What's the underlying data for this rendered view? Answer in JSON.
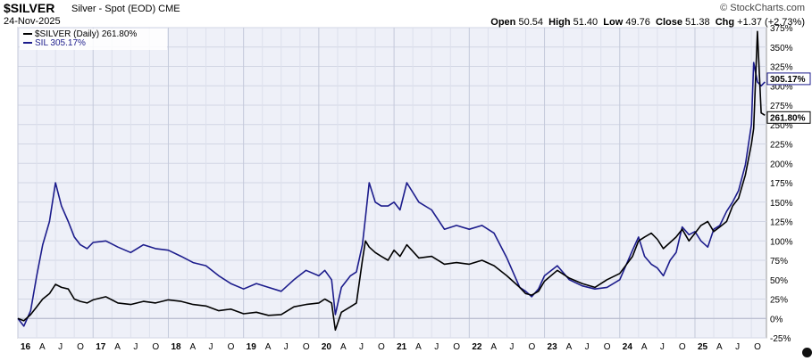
{
  "header": {
    "symbol": "$SILVER",
    "description": "Silver - Spot (EOD) CME",
    "date": "24-Nov-2025",
    "brand": "© StockCharts.com",
    "ohlc": {
      "open_label": "Open",
      "open": "50.54",
      "high_label": "High",
      "high": "51.40",
      "low_label": "Low",
      "low": "49.76",
      "close_label": "Close",
      "close": "51.38",
      "chg_label": "Chg",
      "chg": "+1.37 (+2.73%)"
    }
  },
  "chart_data": {
    "type": "line",
    "x_tick_labels": [
      "16",
      "A",
      "J",
      "O",
      "17",
      "A",
      "J",
      "O",
      "18",
      "A",
      "J",
      "O",
      "19",
      "A",
      "J",
      "O",
      "20",
      "A",
      "J",
      "O",
      "21",
      "A",
      "J",
      "O",
      "22",
      "A",
      "J",
      "O",
      "23",
      "A",
      "J",
      "O",
      "24",
      "A",
      "J",
      "O",
      "25",
      "A",
      "J",
      "O"
    ],
    "y_tick_labels": [
      "375%",
      "350%",
      "325%",
      "300%",
      "275%",
      "250%",
      "225%",
      "200%",
      "175%",
      "150%",
      "125%",
      "100%",
      "75%",
      "50%",
      "25%",
      "0%",
      "-25%"
    ],
    "y_ticks": [
      375,
      350,
      325,
      300,
      275,
      250,
      225,
      200,
      175,
      150,
      125,
      100,
      75,
      50,
      25,
      0,
      -25
    ],
    "ylim": [
      -25,
      375
    ],
    "xlim": [
      2016.0,
      2025.95
    ],
    "grid": true,
    "legend": "top-left",
    "end_labels": [
      "305.17%",
      "261.80%"
    ],
    "series": [
      {
        "name": "$SILVER (Daily) 261.80%",
        "color": "#000000",
        "x": [
          2016.0,
          2016.08,
          2016.17,
          2016.25,
          2016.33,
          2016.42,
          2016.5,
          2016.58,
          2016.67,
          2016.75,
          2016.83,
          2016.92,
          2017.0,
          2017.17,
          2017.33,
          2017.5,
          2017.67,
          2017.83,
          2018.0,
          2018.17,
          2018.33,
          2018.5,
          2018.67,
          2018.83,
          2019.0,
          2019.17,
          2019.33,
          2019.5,
          2019.67,
          2019.83,
          2020.0,
          2020.08,
          2020.17,
          2020.22,
          2020.3,
          2020.42,
          2020.5,
          2020.58,
          2020.62,
          2020.67,
          2020.75,
          2020.83,
          2020.92,
          2021.0,
          2021.08,
          2021.17,
          2021.33,
          2021.5,
          2021.67,
          2021.83,
          2022.0,
          2022.17,
          2022.33,
          2022.5,
          2022.67,
          2022.75,
          2022.83,
          2022.92,
          2023.0,
          2023.17,
          2023.33,
          2023.5,
          2023.67,
          2023.83,
          2024.0,
          2024.17,
          2024.25,
          2024.33,
          2024.42,
          2024.5,
          2024.58,
          2024.67,
          2024.75,
          2024.83,
          2024.92,
          2025.0,
          2025.08,
          2025.17,
          2025.25,
          2025.33,
          2025.42,
          2025.5,
          2025.58,
          2025.67,
          2025.75,
          2025.78,
          2025.83,
          2025.88,
          2025.93
        ],
        "values": [
          0,
          -3,
          5,
          15,
          25,
          32,
          44,
          40,
          38,
          25,
          22,
          20,
          24,
          28,
          20,
          18,
          22,
          20,
          24,
          22,
          18,
          16,
          10,
          12,
          6,
          8,
          4,
          5,
          15,
          18,
          20,
          25,
          20,
          -15,
          8,
          15,
          20,
          75,
          100,
          92,
          85,
          80,
          75,
          88,
          80,
          95,
          78,
          80,
          70,
          72,
          70,
          75,
          68,
          55,
          40,
          32,
          30,
          35,
          48,
          62,
          52,
          45,
          40,
          50,
          58,
          80,
          100,
          105,
          110,
          102,
          90,
          98,
          105,
          115,
          100,
          110,
          120,
          125,
          112,
          118,
          125,
          145,
          155,
          185,
          225,
          245,
          370,
          265,
          262
        ],
        "end_label": "261.80%"
      },
      {
        "name": "SIL 305.17%",
        "color": "#1c1c8c",
        "x": [
          2016.0,
          2016.08,
          2016.17,
          2016.25,
          2016.33,
          2016.42,
          2016.5,
          2016.58,
          2016.67,
          2016.75,
          2016.83,
          2016.92,
          2017.0,
          2017.17,
          2017.33,
          2017.5,
          2017.67,
          2017.83,
          2018.0,
          2018.17,
          2018.33,
          2018.5,
          2018.67,
          2018.83,
          2019.0,
          2019.17,
          2019.33,
          2019.5,
          2019.67,
          2019.83,
          2020.0,
          2020.08,
          2020.17,
          2020.22,
          2020.3,
          2020.42,
          2020.5,
          2020.58,
          2020.62,
          2020.67,
          2020.75,
          2020.83,
          2020.92,
          2021.0,
          2021.08,
          2021.17,
          2021.33,
          2021.5,
          2021.67,
          2021.83,
          2022.0,
          2022.17,
          2022.33,
          2022.5,
          2022.67,
          2022.75,
          2022.83,
          2022.92,
          2023.0,
          2023.17,
          2023.33,
          2023.5,
          2023.67,
          2023.83,
          2024.0,
          2024.17,
          2024.25,
          2024.33,
          2024.42,
          2024.5,
          2024.58,
          2024.67,
          2024.75,
          2024.83,
          2024.92,
          2025.0,
          2025.08,
          2025.17,
          2025.25,
          2025.33,
          2025.42,
          2025.5,
          2025.58,
          2025.67,
          2025.75,
          2025.78,
          2025.83,
          2025.88,
          2025.93
        ],
        "values": [
          0,
          -10,
          10,
          55,
          95,
          125,
          175,
          145,
          125,
          105,
          95,
          90,
          98,
          100,
          92,
          85,
          95,
          90,
          88,
          80,
          72,
          68,
          55,
          45,
          38,
          45,
          40,
          35,
          50,
          62,
          55,
          62,
          50,
          5,
          40,
          55,
          60,
          95,
          130,
          175,
          150,
          145,
          145,
          150,
          140,
          175,
          150,
          140,
          115,
          120,
          115,
          120,
          110,
          78,
          40,
          35,
          28,
          38,
          55,
          68,
          50,
          42,
          38,
          40,
          50,
          88,
          105,
          80,
          70,
          65,
          55,
          75,
          85,
          118,
          108,
          112,
          100,
          92,
          115,
          120,
          138,
          150,
          165,
          198,
          250,
          330,
          305,
          300,
          305
        ],
        "end_label": "305.17%"
      }
    ]
  }
}
